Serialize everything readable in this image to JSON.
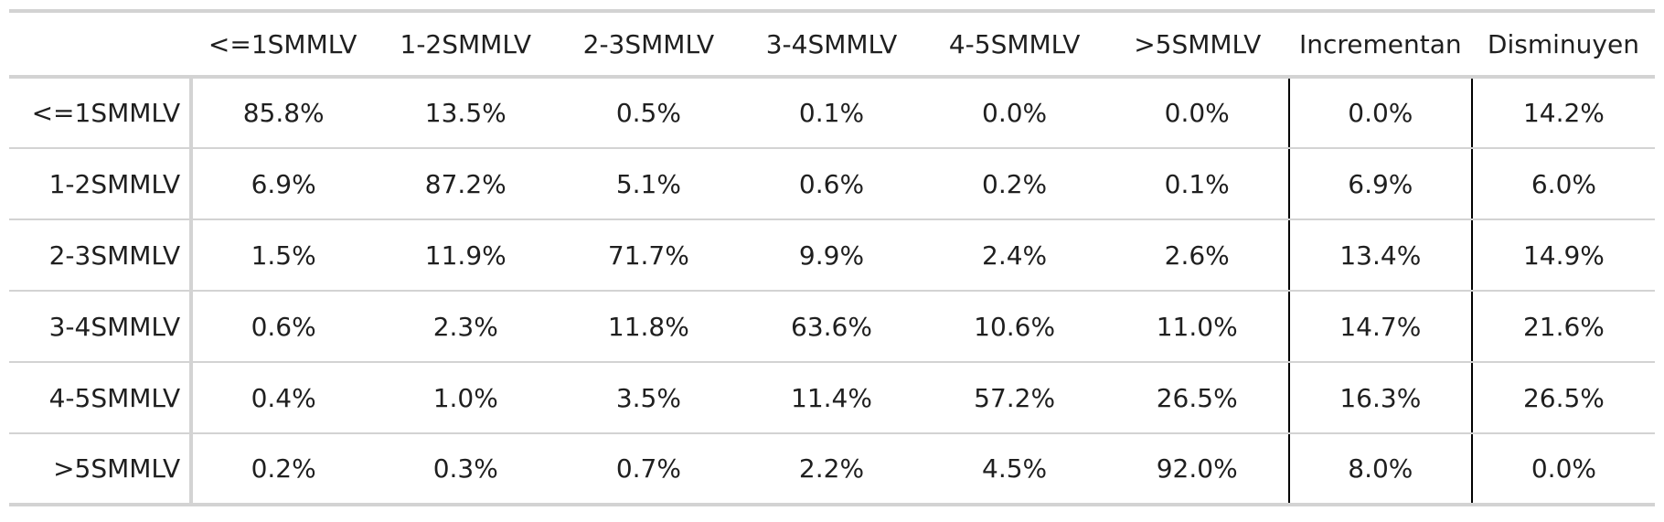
{
  "table": {
    "columns": [
      "<=1SMMLV",
      "1-2SMMLV",
      "2-3SMMLV",
      "3-4SMMLV",
      "4-5SMMLV",
      ">5SMMLV",
      "Incrementan",
      "Disminuyen"
    ],
    "rows": [
      {
        "label": "<=1SMMLV",
        "cells": [
          "85.8%",
          "13.5%",
          "0.5%",
          "0.1%",
          "0.0%",
          "0.0%",
          "0.0%",
          "14.2%"
        ]
      },
      {
        "label": "1-2SMMLV",
        "cells": [
          "6.9%",
          "87.2%",
          "5.1%",
          "0.6%",
          "0.2%",
          "0.1%",
          "6.9%",
          "6.0%"
        ]
      },
      {
        "label": "2-3SMMLV",
        "cells": [
          "1.5%",
          "11.9%",
          "71.7%",
          "9.9%",
          "2.4%",
          "2.6%",
          "13.4%",
          "14.9%"
        ]
      },
      {
        "label": "3-4SMMLV",
        "cells": [
          "0.6%",
          "2.3%",
          "11.8%",
          "63.6%",
          "10.6%",
          "11.0%",
          "14.7%",
          "21.6%"
        ]
      },
      {
        "label": "4-5SMMLV",
        "cells": [
          "0.4%",
          "1.0%",
          "3.5%",
          "11.4%",
          "57.2%",
          "26.5%",
          "16.3%",
          "26.5%"
        ]
      },
      {
        "label": ">5SMMLV",
        "cells": [
          "0.2%",
          "0.3%",
          "0.7%",
          "2.2%",
          "4.5%",
          "92.0%",
          "8.0%",
          "0.0%"
        ]
      }
    ]
  }
}
